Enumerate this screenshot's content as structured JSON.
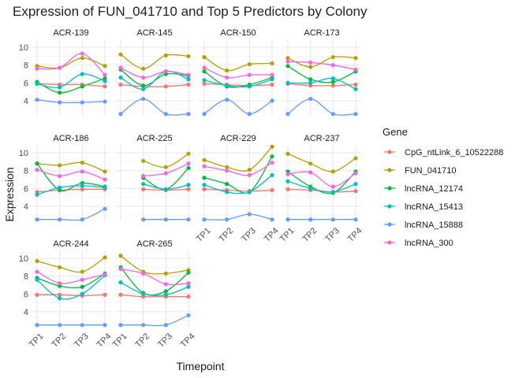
{
  "chart_data": {
    "type": "line",
    "title": "Expression of FUN_041710 and Top 5 Predictors by Colony",
    "xlabel": "Timepoint",
    "ylabel": "Expression",
    "legend_title": "Gene",
    "legend_position": "right",
    "grid": true,
    "x": [
      "TP1",
      "TP2",
      "TP3",
      "TP4"
    ],
    "y_ticks": [
      4,
      6,
      8,
      10
    ],
    "ylim": [
      2.3,
      10.9
    ],
    "series_colors": {
      "CpG_ntLink_6_10522288": "#F8766D",
      "FUN_041710": "#B79F00",
      "lncRNA_12174": "#00BA38",
      "lncRNA_15413": "#00BFC4",
      "lncRNA_15888": "#619CFF",
      "lncRNA_300": "#F564E3"
    },
    "genes": [
      "CpG_ntLink_6_10522288",
      "FUN_041710",
      "lncRNA_12174",
      "lncRNA_15413",
      "lncRNA_15888",
      "lncRNA_300"
    ],
    "panels": [
      {
        "colony": "ACR-139",
        "series": [
          {
            "name": "CpG_ntLink_6_10522288",
            "values": [
              5.9,
              5.8,
              5.8,
              5.6
            ]
          },
          {
            "name": "FUN_041710",
            "values": [
              7.9,
              7.7,
              8.8,
              7.9
            ]
          },
          {
            "name": "lncRNA_12174",
            "values": [
              6.1,
              4.9,
              5.6,
              6.5
            ]
          },
          {
            "name": "lncRNA_15413",
            "values": [
              5.9,
              5.5,
              7.0,
              6.2
            ]
          },
          {
            "name": "lncRNA_15888",
            "values": [
              4.1,
              3.8,
              3.8,
              3.9
            ]
          },
          {
            "name": "lncRNA_300",
            "values": [
              7.6,
              7.7,
              9.3,
              6.9
            ]
          }
        ]
      },
      {
        "colony": "ACR-145",
        "series": [
          {
            "name": "CpG_ntLink_6_10522288",
            "values": [
              5.8,
              5.6,
              5.6,
              5.8
            ]
          },
          {
            "name": "FUN_041710",
            "values": [
              9.2,
              7.6,
              9.1,
              9.0
            ]
          },
          {
            "name": "lncRNA_12174",
            "values": [
              7.5,
              5.7,
              7.0,
              6.8
            ]
          },
          {
            "name": "lncRNA_15413",
            "values": [
              6.6,
              5.3,
              7.3,
              6.4
            ]
          },
          {
            "name": "lncRNA_15888",
            "values": [
              2.5,
              4.2,
              2.5,
              2.5
            ]
          },
          {
            "name": "lncRNA_300",
            "values": [
              7.7,
              6.6,
              7.3,
              6.9
            ]
          }
        ]
      },
      {
        "colony": "ACR-150",
        "series": [
          {
            "name": "CpG_ntLink_6_10522288",
            "values": [
              5.9,
              5.8,
              5.7,
              5.8
            ]
          },
          {
            "name": "FUN_041710",
            "values": [
              8.9,
              7.4,
              8.1,
              8.2
            ]
          },
          {
            "name": "lncRNA_12174",
            "values": [
              7.3,
              5.6,
              5.8,
              6.6
            ]
          },
          {
            "name": "lncRNA_15413",
            "values": [
              6.3,
              5.7,
              5.6,
              6.4
            ]
          },
          {
            "name": "lncRNA_15888",
            "values": [
              2.5,
              4.1,
              2.5,
              4.0
            ]
          },
          {
            "name": "lncRNA_300",
            "values": [
              7.7,
              6.6,
              6.9,
              6.9
            ]
          }
        ]
      },
      {
        "colony": "ACR-173",
        "series": [
          {
            "name": "CpG_ntLink_6_10522288",
            "values": [
              5.9,
              5.7,
              5.7,
              5.8
            ]
          },
          {
            "name": "FUN_041710",
            "values": [
              8.8,
              7.8,
              8.9,
              8.8
            ]
          },
          {
            "name": "lncRNA_12174",
            "values": [
              7.9,
              6.4,
              6.1,
              7.3
            ]
          },
          {
            "name": "lncRNA_15413",
            "values": [
              6.0,
              6.0,
              6.5,
              5.3
            ]
          },
          {
            "name": "lncRNA_15888",
            "values": [
              2.5,
              4.2,
              2.5,
              2.5
            ]
          },
          {
            "name": "lncRNA_300",
            "values": [
              8.4,
              8.3,
              8.0,
              7.5
            ]
          }
        ]
      },
      {
        "colony": "ACR-186",
        "series": [
          {
            "name": "CpG_ntLink_6_10522288",
            "values": [
              5.6,
              5.8,
              5.9,
              5.9
            ]
          },
          {
            "name": "FUN_041710",
            "values": [
              8.8,
              8.6,
              8.9,
              7.9
            ]
          },
          {
            "name": "lncRNA_12174",
            "values": [
              8.8,
              5.8,
              6.6,
              6.2
            ]
          },
          {
            "name": "lncRNA_15413",
            "values": [
              5.3,
              6.1,
              6.3,
              6.1
            ]
          },
          {
            "name": "lncRNA_15888",
            "values": [
              2.5,
              2.5,
              2.5,
              3.7
            ]
          },
          {
            "name": "lncRNA_300",
            "values": [
              8.1,
              7.4,
              7.9,
              7.0
            ]
          }
        ]
      },
      {
        "colony": "ACR-225",
        "series": [
          {
            "name": "CpG_ntLink_6_10522288",
            "values": [
              null,
              5.9,
              5.8,
              5.9
            ]
          },
          {
            "name": "FUN_041710",
            "values": [
              null,
              9.1,
              8.4,
              9.9
            ]
          },
          {
            "name": "lncRNA_12174",
            "values": [
              null,
              7.2,
              5.9,
              8.3
            ]
          },
          {
            "name": "lncRNA_15413",
            "values": [
              null,
              6.5,
              5.9,
              6.4
            ]
          },
          {
            "name": "lncRNA_15888",
            "values": [
              null,
              2.5,
              2.5,
              2.5
            ]
          },
          {
            "name": "lncRNA_300",
            "values": [
              null,
              7.4,
              7.7,
              8.8
            ]
          }
        ]
      },
      {
        "colony": "ACR-229",
        "series": [
          {
            "name": "CpG_ntLink_6_10522288",
            "values": [
              5.9,
              5.8,
              5.7,
              5.8
            ]
          },
          {
            "name": "FUN_041710",
            "values": [
              9.2,
              8.4,
              8.1,
              10.7
            ]
          },
          {
            "name": "lncRNA_12174",
            "values": [
              7.2,
              6.5,
              5.6,
              9.6
            ]
          },
          {
            "name": "lncRNA_15413",
            "values": [
              6.4,
              5.6,
              5.6,
              7.5
            ]
          },
          {
            "name": "lncRNA_15888",
            "values": [
              2.5,
              2.5,
              3.1,
              2.5
            ]
          },
          {
            "name": "lncRNA_300",
            "values": [
              8.5,
              8.0,
              7.5,
              8.9
            ]
          }
        ]
      },
      {
        "colony": "ACR-237",
        "series": [
          {
            "name": "CpG_ntLink_6_10522288",
            "values": [
              5.9,
              5.8,
              5.6,
              5.7
            ]
          },
          {
            "name": "FUN_041710",
            "values": [
              9.9,
              8.8,
              7.9,
              9.4
            ]
          },
          {
            "name": "lncRNA_12174",
            "values": [
              7.9,
              6.2,
              5.5,
              7.9
            ]
          },
          {
            "name": "lncRNA_15413",
            "values": [
              6.8,
              6.0,
              5.6,
              6.5
            ]
          },
          {
            "name": "lncRNA_15888",
            "values": [
              2.5,
              2.5,
              2.5,
              2.5
            ]
          },
          {
            "name": "lncRNA_300",
            "values": [
              7.6,
              7.8,
              6.2,
              7.7
            ]
          }
        ]
      },
      {
        "colony": "ACR-244",
        "series": [
          {
            "name": "CpG_ntLink_6_10522288",
            "values": [
              5.9,
              5.9,
              5.8,
              5.9
            ]
          },
          {
            "name": "FUN_041710",
            "values": [
              9.7,
              9.0,
              8.5,
              10.1
            ]
          },
          {
            "name": "lncRNA_12174",
            "values": [
              7.8,
              6.9,
              6.8,
              8.3
            ]
          },
          {
            "name": "lncRNA_15413",
            "values": [
              7.6,
              5.5,
              6.0,
              8.1
            ]
          },
          {
            "name": "lncRNA_15888",
            "values": [
              2.5,
              2.5,
              2.5,
              2.5
            ]
          },
          {
            "name": "lncRNA_300",
            "values": [
              8.5,
              7.2,
              7.6,
              8.2
            ]
          }
        ]
      },
      {
        "colony": "ACR-265",
        "series": [
          {
            "name": "CpG_ntLink_6_10522288",
            "values": [
              5.9,
              5.7,
              5.7,
              5.7
            ]
          },
          {
            "name": "FUN_041710",
            "values": [
              10.3,
              8.5,
              8.3,
              8.7
            ]
          },
          {
            "name": "lncRNA_12174",
            "values": [
              9.0,
              6.1,
              6.3,
              8.4
            ]
          },
          {
            "name": "lncRNA_15413",
            "values": [
              7.3,
              6.0,
              5.9,
              6.8
            ]
          },
          {
            "name": "lncRNA_15888",
            "values": [
              2.5,
              2.5,
              2.5,
              3.6
            ]
          },
          {
            "name": "lncRNA_300",
            "values": [
              8.8,
              8.3,
              7.1,
              7.2
            ]
          }
        ]
      }
    ]
  }
}
